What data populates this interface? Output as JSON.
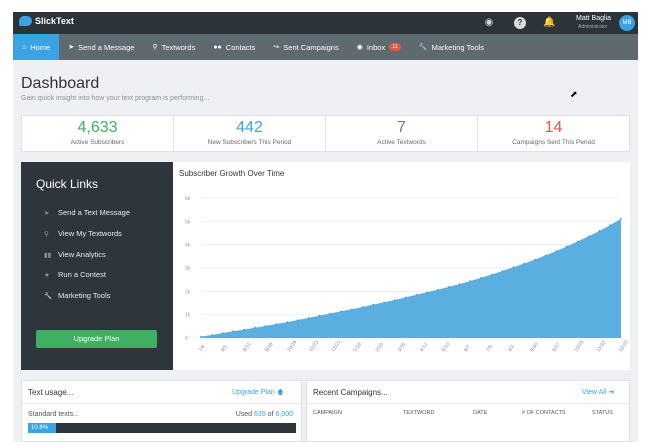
{
  "app": {
    "brand": "SlickText"
  },
  "topbar": {
    "icons": [
      "eye-icon",
      "help-icon",
      "bell-icon"
    ],
    "user_name": "Matt Baglia",
    "user_role": "Administrator",
    "avatar_initials": "MB"
  },
  "nav": {
    "items": [
      {
        "label": "Home",
        "icon": "home-icon",
        "active": true
      },
      {
        "label": "Send a Message",
        "icon": "paper-plane-icon"
      },
      {
        "label": "Textwords",
        "icon": "key-icon"
      },
      {
        "label": "Contacts",
        "icon": "users-icon"
      },
      {
        "label": "Sent Campaigns",
        "icon": "share-icon"
      },
      {
        "label": "Inbox",
        "icon": "chat-icon",
        "badge": "11"
      },
      {
        "label": "Marketing Tools",
        "icon": "wrench-icon"
      }
    ]
  },
  "dashboard": {
    "title": "Dashboard",
    "subtitle": "Gain quick insight into how your text program is performing..."
  },
  "stats": [
    {
      "value": "4,633",
      "label": "Active Subscribers",
      "color": "#3fb061"
    },
    {
      "value": "442",
      "label": "New Subscribers This Period",
      "color": "#3aa3e3"
    },
    {
      "value": "7",
      "label": "Active Textwords",
      "color": "#8e6a9d"
    },
    {
      "value": "14",
      "label": "Campaigns Sent This Period",
      "color": "#e9573f"
    }
  ],
  "quick_links": {
    "title": "Quick Links",
    "items": [
      {
        "label": "Send a Text Message",
        "icon": "paper-plane-icon"
      },
      {
        "label": "View My Textwords",
        "icon": "key-icon"
      },
      {
        "label": "View Analytics",
        "icon": "bar-chart-icon"
      },
      {
        "label": "Run a Contest",
        "icon": "trophy-icon"
      },
      {
        "label": "Marketing Tools",
        "icon": "wrench-icon"
      }
    ],
    "upgrade_label": "Upgrade Plan"
  },
  "chart_data": {
    "type": "area",
    "title": "Subscriber Growth Over Time",
    "xlabel": "",
    "ylabel": "",
    "ylim": [
      0,
      6000
    ],
    "y_ticks": [
      "0",
      "1k",
      "2k",
      "3k",
      "4k",
      "5k",
      "6k"
    ],
    "grid": true,
    "color": "#5aaee0",
    "x": [
      "7/6",
      "7/20",
      "8/3",
      "8/17",
      "8/31",
      "9/14",
      "9/28",
      "10/12",
      "10/26",
      "11/9",
      "11/23",
      "12/7",
      "12/21",
      "1/4",
      "1/18",
      "2/1",
      "2/15",
      "3/1",
      "3/15",
      "3/29",
      "4/12",
      "4/26",
      "5/10",
      "5/24",
      "6/7",
      "6/21",
      "7/5",
      "7/19",
      "8/2",
      "8/16",
      "8/30",
      "9/13",
      "9/27",
      "10/11",
      "10/25",
      "11/8",
      "11/22",
      "12/6",
      "12/20",
      "1/3"
    ],
    "x_tick_labels": [
      "7/6",
      "8/3",
      "8/31",
      "9/28",
      "10/26",
      "11/23",
      "12/21",
      "1/18",
      "2/15",
      "3/15",
      "4/12",
      "5/10",
      "6/7",
      "7/5",
      "8/2",
      "8/30",
      "9/27",
      "10/25",
      "11/22",
      "12/20"
    ],
    "values": [
      60,
      130,
      210,
      290,
      360,
      440,
      520,
      600,
      680,
      770,
      860,
      960,
      1050,
      1140,
      1230,
      1330,
      1430,
      1530,
      1630,
      1740,
      1850,
      1960,
      2070,
      2190,
      2310,
      2440,
      2580,
      2720,
      2870,
      3030,
      3190,
      3360,
      3540,
      3730,
      3930,
      4140,
      4360,
      4590,
      4840,
      5110
    ]
  },
  "usage": {
    "title": "Text usage...",
    "link": "Upgrade Plan",
    "label": "Standard texts...",
    "used_prefix": "Used",
    "used": "635",
    "of_word": "of",
    "total": "6,000",
    "percent_label": "10.6%",
    "fraction": 0.106
  },
  "recent": {
    "title": "Recent Campaigns...",
    "link": "View All",
    "columns": [
      "CAMPAIGN",
      "TEXTWORD",
      "DATE",
      "# OF CONTACTS",
      "STATUS"
    ]
  }
}
